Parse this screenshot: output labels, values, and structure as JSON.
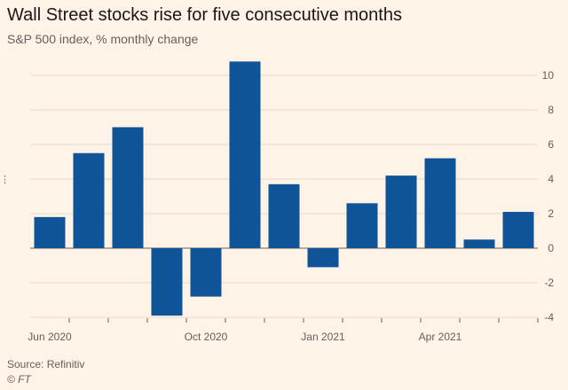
{
  "chart_data": {
    "type": "bar",
    "title": "Wall Street stocks rise for five consecutive months",
    "subtitle": "S&P 500 index, % monthly change",
    "categories": [
      "Jun 2020",
      "Jul 2020",
      "Aug 2020",
      "Sep 2020",
      "Oct 2020",
      "Nov 2020",
      "Dec 2020",
      "Jan 2021",
      "Feb 2021",
      "Mar 2021",
      "Apr 2021",
      "May 2021",
      "Jun 2021"
    ],
    "values": [
      1.8,
      5.5,
      7.0,
      -3.9,
      -2.8,
      10.8,
      3.7,
      -1.1,
      2.6,
      4.2,
      5.2,
      0.5,
      2.1
    ],
    "x_tick_labels": [
      "Jun 2020",
      "Oct 2020",
      "Jan 2021",
      "Apr 2021"
    ],
    "x_tick_indices": [
      0,
      4,
      7,
      10
    ],
    "y_ticks": [
      10,
      8,
      6,
      4,
      2,
      0,
      -2,
      -4
    ],
    "ylim": [
      -4,
      11
    ],
    "xlabel": "",
    "ylabel": "",
    "bar_color": "#0f5499",
    "grid": true
  },
  "footer": {
    "source": "Source: Refinitiv",
    "credit": "© FT"
  }
}
